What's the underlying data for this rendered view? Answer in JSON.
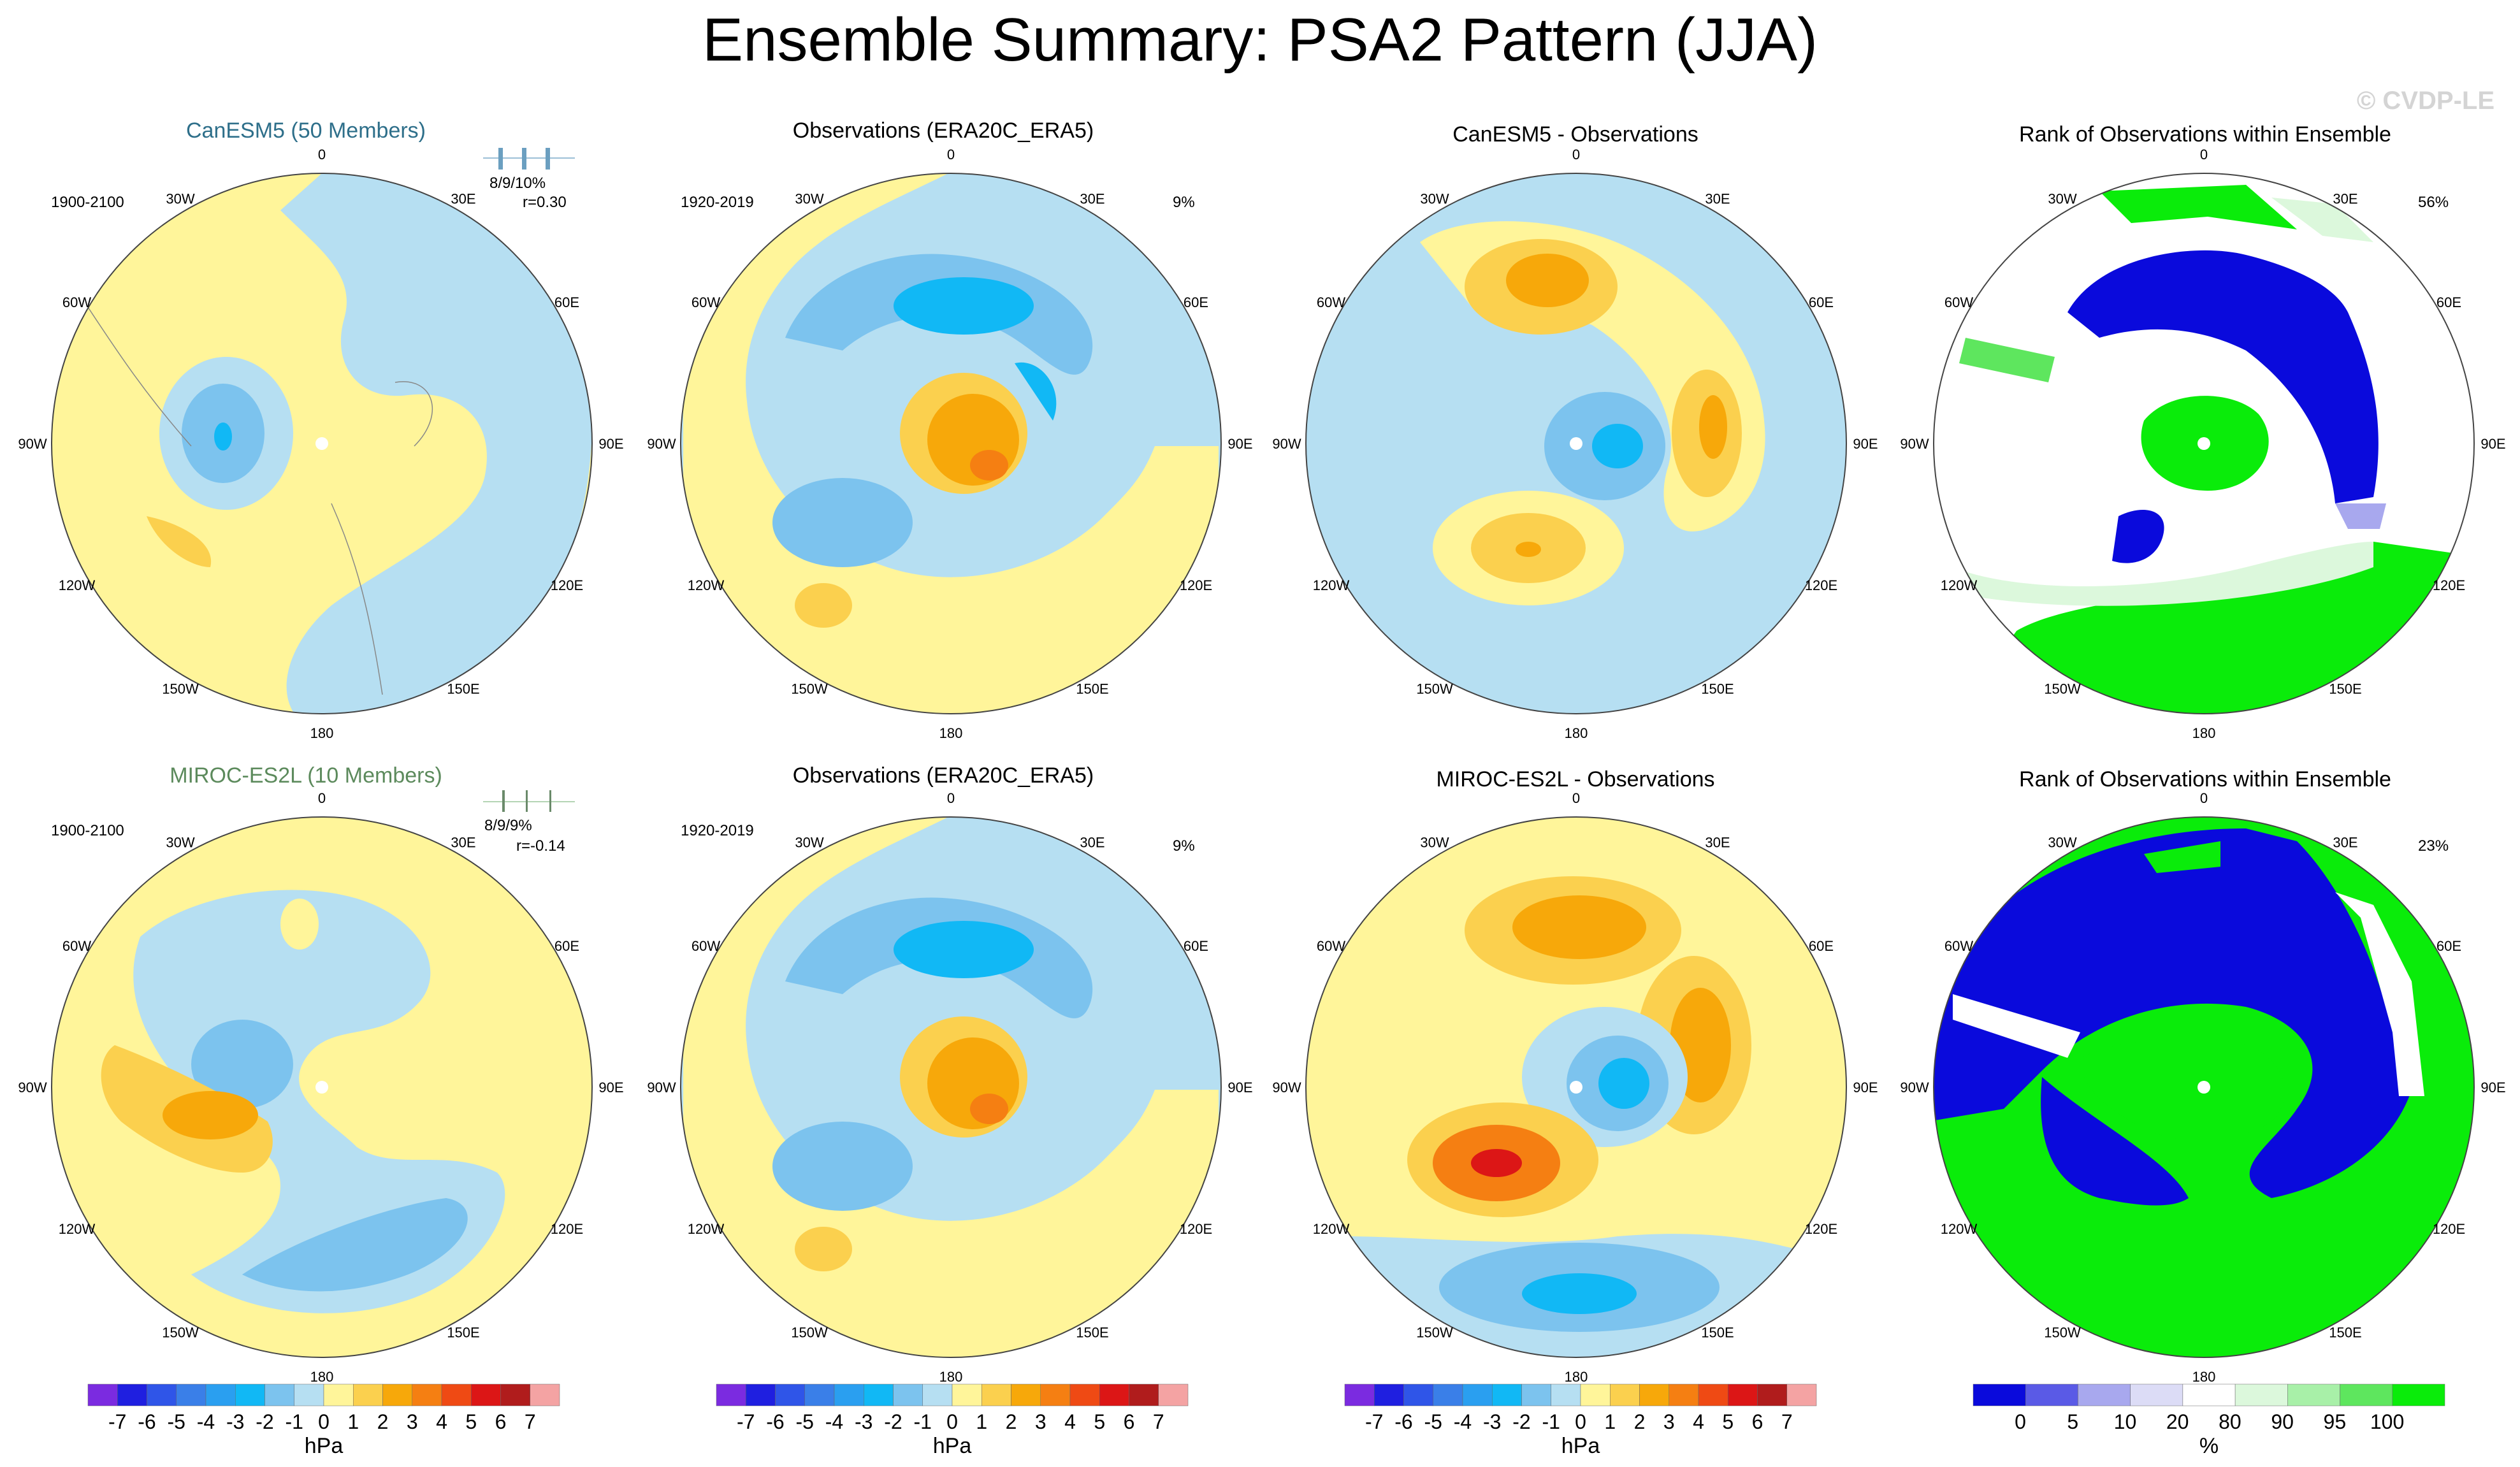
{
  "title": "Ensemble Summary: PSA2 Pattern (JJA)",
  "watermark": "© CVDP-LE",
  "panels": [
    {
      "id": "p1",
      "title": "CanESM5 (50 Members)",
      "period": "1900-2100",
      "stat": "8/9/10%",
      "corr": "r=0.30",
      "kind": "model"
    },
    {
      "id": "p2",
      "title": "Observations (ERA20C_ERA5)",
      "period": "1920-2019",
      "pct": "9%",
      "kind": "obs"
    },
    {
      "id": "p3",
      "title": "CanESM5 - Observations",
      "kind": "diff"
    },
    {
      "id": "p4",
      "title": "Rank of Observations within Ensemble",
      "pct": "56%",
      "kind": "rank"
    },
    {
      "id": "p5",
      "title": "MIROC-ES2L (10 Members)",
      "period": "1900-2100",
      "stat": "8/9/9%",
      "corr": "r=-0.14",
      "kind": "model"
    },
    {
      "id": "p6",
      "title": "Observations (ERA20C_ERA5)",
      "period": "1920-2019",
      "pct": "9%",
      "kind": "obs"
    },
    {
      "id": "p7",
      "title": "MIROC-ES2L - Observations",
      "kind": "diff"
    },
    {
      "id": "p8",
      "title": "Rank of Observations within Ensemble",
      "pct": "23%",
      "kind": "rank"
    }
  ],
  "map_labels": [
    "0",
    "30E",
    "60E",
    "90E",
    "120E",
    "150E",
    "180",
    "150W",
    "120W",
    "90W",
    "60W",
    "30W"
  ],
  "chart_data": [
    {
      "type": "heatmap",
      "title": "hPa colorbar",
      "label": "hPa",
      "ticks": [
        "-7",
        "-6",
        "-5",
        "-4",
        "-3",
        "-2",
        "-1",
        "0",
        "1",
        "2",
        "3",
        "4",
        "5",
        "6",
        "7"
      ],
      "colors": [
        "#7b2be0",
        "#1f1fe0",
        "#2f55e8",
        "#3a7fe8",
        "#2a9ff0",
        "#11b8f5",
        "#7cc3ee",
        "#b6dff2",
        "#fff59a",
        "#fbd04e",
        "#f7a80a",
        "#f57f12",
        "#ef4a14",
        "#dc1616",
        "#b01c1c",
        "#f4a3a3"
      ]
    },
    {
      "type": "heatmap",
      "title": "Rank colorbar",
      "label": "%",
      "ticks": [
        "0",
        "5",
        "10",
        "20",
        "80",
        "90",
        "95",
        "100"
      ],
      "colors": [
        "#0a0adc",
        "#5a5ae6",
        "#a8a8ee",
        "#dcdcf6",
        "#ffffff",
        "#dcf8dc",
        "#a8f0a8",
        "#5ee65e",
        "#0aec0a"
      ]
    }
  ]
}
